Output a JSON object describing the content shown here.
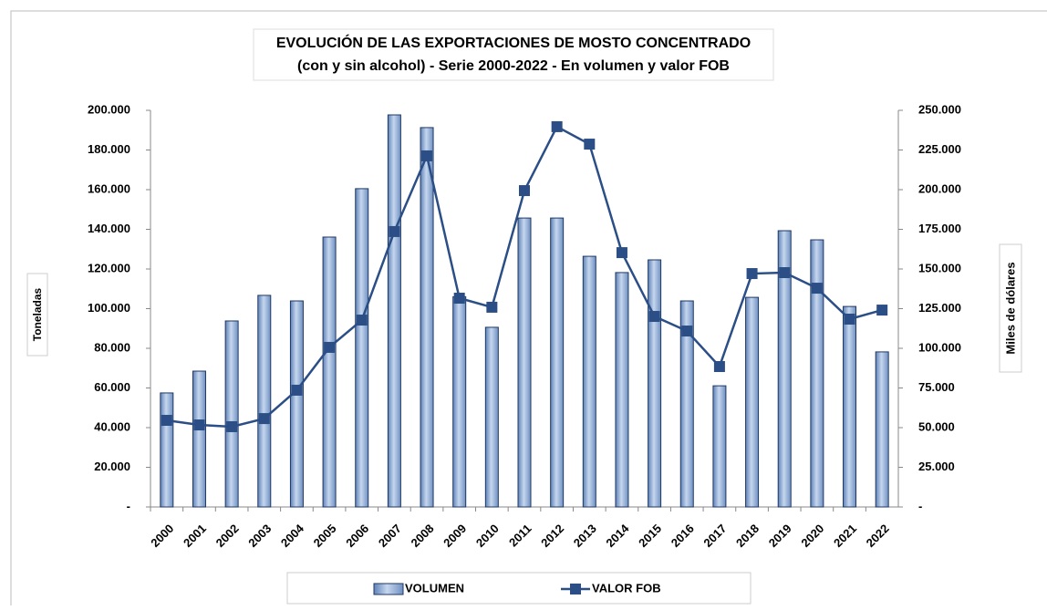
{
  "chart_data": {
    "type": "bar_line",
    "title": "EVOLUCIÓN DE LAS EXPORTACIONES DE MOSTO CONCENTRADO",
    "subtitle": "(con y sin alcohol) - Serie 2000-2022 - En volumen y valor FOB",
    "y_label": "Toneladas",
    "y2_label": "Miles de dólares",
    "categories": [
      "2000",
      "2001",
      "2002",
      "2003",
      "2004",
      "2005",
      "2006",
      "2007",
      "2008",
      "2009",
      "2010",
      "2011",
      "2012",
      "2013",
      "2014",
      "2015",
      "2016",
      "2017",
      "2018",
      "2019",
      "2020",
      "2021",
      "2022"
    ],
    "series": [
      {
        "name": "VOLUMEN",
        "type": "bar",
        "color": "#95b3d7",
        "axis": "y",
        "values": [
          57500,
          68500,
          93800,
          106700,
          103900,
          136100,
          160500,
          197700,
          191300,
          106000,
          90600,
          145700,
          145700,
          126400,
          118200,
          124600,
          103900,
          61100,
          105700,
          139300,
          134700,
          101100,
          78200
        ]
      },
      {
        "name": "VALOR FOB",
        "type": "line",
        "color": "#2a4e85",
        "axis": "y2",
        "values": [
          54600,
          51700,
          50600,
          55700,
          73600,
          100600,
          117800,
          173600,
          221300,
          131600,
          125900,
          199400,
          239700,
          228700,
          160300,
          120100,
          110900,
          88500,
          147100,
          147700,
          137900,
          118400,
          124100
        ]
      }
    ],
    "ylim": [
      0,
      200000
    ],
    "yticks": [
      {
        "value": 0,
        "label": "-"
      },
      {
        "value": 20000,
        "label": "20.000"
      },
      {
        "value": 40000,
        "label": "40.000"
      },
      {
        "value": 60000,
        "label": "60.000"
      },
      {
        "value": 80000,
        "label": "80.000"
      },
      {
        "value": 100000,
        "label": "100.000"
      },
      {
        "value": 120000,
        "label": "120.000"
      },
      {
        "value": 140000,
        "label": "140.000"
      },
      {
        "value": 160000,
        "label": "160.000"
      },
      {
        "value": 180000,
        "label": "180.000"
      },
      {
        "value": 200000,
        "label": "200.000"
      }
    ],
    "y2lim": [
      0,
      250000
    ],
    "y2ticks": [
      {
        "value": 0,
        "label": "-"
      },
      {
        "value": 25000,
        "label": "25.000"
      },
      {
        "value": 50000,
        "label": "50.000"
      },
      {
        "value": 75000,
        "label": "75.000"
      },
      {
        "value": 100000,
        "label": "100.000"
      },
      {
        "value": 125000,
        "label": "125.000"
      },
      {
        "value": 150000,
        "label": "150.000"
      },
      {
        "value": 175000,
        "label": "175.000"
      },
      {
        "value": 200000,
        "label": "200.000"
      },
      {
        "value": 225000,
        "label": "225.000"
      },
      {
        "value": 250000,
        "label": "250.000"
      }
    ]
  }
}
